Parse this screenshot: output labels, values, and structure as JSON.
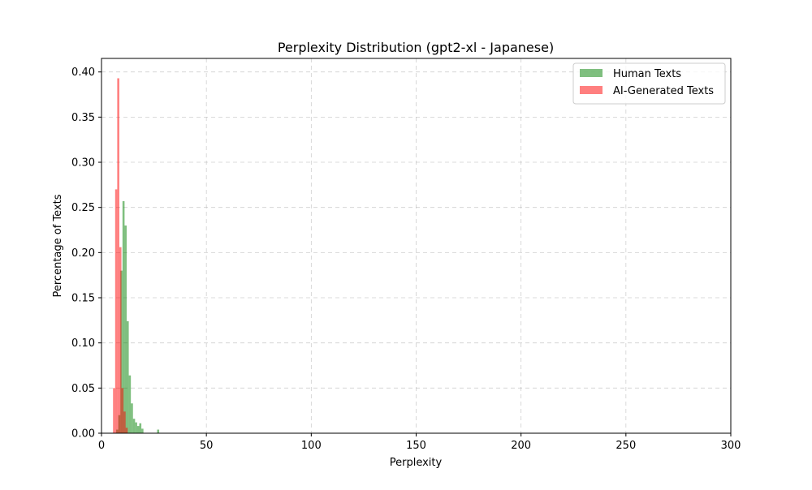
{
  "chart_data": {
    "type": "bar",
    "title": "Perplexity Distribution (gpt2-xl - Japanese)",
    "xlabel": "Perplexity",
    "ylabel": "Percentage of Texts",
    "xlim": [
      0,
      300
    ],
    "ylim": [
      0,
      0.415
    ],
    "xticks": [
      0,
      50,
      100,
      150,
      200,
      250,
      300
    ],
    "xtick_labels": [
      "0",
      "50",
      "100",
      "150",
      "200",
      "250",
      "300"
    ],
    "yticks": [
      0,
      0.05,
      0.1,
      0.15,
      0.2,
      0.25,
      0.3,
      0.35,
      0.4
    ],
    "ytick_labels": [
      "0.00",
      "0.05",
      "0.10",
      "0.15",
      "0.20",
      "0.25",
      "0.30",
      "0.35",
      "0.40"
    ],
    "grid": true,
    "legend_position": "top-right",
    "series": [
      {
        "name": "Human Texts",
        "color": "#008000",
        "opacity": 0.5,
        "bin_width": 1.0,
        "bins": [
          {
            "x": 7.0,
            "y": 0.004
          },
          {
            "x": 8.0,
            "y": 0.02
          },
          {
            "x": 9.0,
            "y": 0.18
          },
          {
            "x": 10.0,
            "y": 0.257
          },
          {
            "x": 11.0,
            "y": 0.23
          },
          {
            "x": 12.0,
            "y": 0.124
          },
          {
            "x": 13.0,
            "y": 0.064
          },
          {
            "x": 14.0,
            "y": 0.033
          },
          {
            "x": 15.0,
            "y": 0.016
          },
          {
            "x": 16.0,
            "y": 0.012
          },
          {
            "x": 17.0,
            "y": 0.008
          },
          {
            "x": 18.0,
            "y": 0.011
          },
          {
            "x": 19.0,
            "y": 0.005
          },
          {
            "x": 26.5,
            "y": 0.004
          }
        ]
      },
      {
        "name": "AI-Generated Texts",
        "color": "#ff0000",
        "opacity": 0.5,
        "bin_width": 1.0,
        "bins": [
          {
            "x": 5.5,
            "y": 0.05
          },
          {
            "x": 6.5,
            "y": 0.27
          },
          {
            "x": 7.5,
            "y": 0.393
          },
          {
            "x": 8.5,
            "y": 0.206
          },
          {
            "x": 9.5,
            "y": 0.05
          },
          {
            "x": 10.5,
            "y": 0.024
          },
          {
            "x": 11.5,
            "y": 0.006
          }
        ]
      }
    ]
  }
}
